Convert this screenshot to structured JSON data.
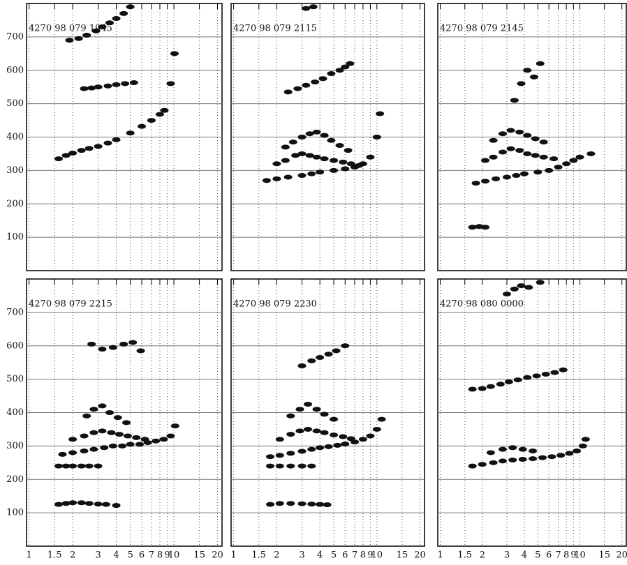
{
  "chart_data": [
    {
      "type": "scatter",
      "title": "4270 98 079 1945",
      "xscale": "log",
      "xlim": [
        0.96,
        21.5
      ],
      "ylim": [
        0,
        800
      ],
      "xticks": [
        1,
        1.5,
        2,
        3,
        4,
        5,
        6,
        7,
        8,
        9,
        10,
        15,
        20
      ],
      "yticks": [
        100,
        200,
        300,
        400,
        500,
        600,
        700
      ],
      "grid": true,
      "series": [
        {
          "color": "#111",
          "x": [
            1.6,
            1.8,
            2,
            2.3,
            2.6,
            3,
            3.5,
            4,
            5,
            6,
            7,
            8,
            8.6,
            9.5,
            10.1
          ],
          "values": [
            335,
            345,
            352,
            360,
            366,
            372,
            382,
            392,
            412,
            432,
            450,
            468,
            480,
            560,
            650
          ]
        },
        {
          "color": "#111",
          "x": [
            2.4,
            2.7,
            3,
            3.5,
            4,
            4.6,
            5.3
          ],
          "values": [
            545,
            547,
            550,
            553,
            557,
            560,
            563
          ]
        },
        {
          "color": "#111",
          "x": [
            1.9,
            2.2,
            2.5,
            2.9,
            3.2,
            3.6,
            4,
            4.5,
            5
          ],
          "values": [
            690,
            695,
            705,
            718,
            730,
            742,
            755,
            770,
            790
          ]
        }
      ]
    },
    {
      "type": "scatter",
      "title": "4270 98 079 2115",
      "xscale": "log",
      "xlim": [
        0.96,
        21.5
      ],
      "ylim": [
        0,
        800
      ],
      "xticks": [
        1,
        1.5,
        2,
        3,
        4,
        5,
        6,
        7,
        8,
        9,
        10,
        15,
        20
      ],
      "yticks": [
        100,
        200,
        300,
        400,
        500,
        600,
        700
      ],
      "grid": true,
      "series": [
        {
          "color": "#111",
          "x": [
            1.7,
            2,
            2.4,
            3,
            3.5,
            4,
            5,
            6,
            7,
            8,
            9,
            10,
            10.5
          ],
          "values": [
            270,
            275,
            280,
            285,
            290,
            295,
            300,
            305,
            310,
            320,
            340,
            400,
            470
          ]
        },
        {
          "color": "#111",
          "x": [
            2,
            2.3,
            2.7,
            3,
            3.4,
            3.8,
            4.3,
            5,
            5.8,
            6.6,
            7.5
          ],
          "values": [
            320,
            330,
            345,
            350,
            345,
            340,
            335,
            330,
            325,
            320,
            315
          ]
        },
        {
          "color": "#111",
          "x": [
            2.3,
            2.6,
            3,
            3.4,
            3.8,
            4.3,
            4.8,
            5.5,
            6.3
          ],
          "values": [
            370,
            385,
            400,
            410,
            415,
            405,
            390,
            375,
            360
          ]
        },
        {
          "color": "#111",
          "x": [
            2.4,
            2.8,
            3.2,
            3.7,
            4.2,
            4.8,
            5.5,
            6,
            6.5
          ],
          "values": [
            535,
            545,
            555,
            565,
            575,
            590,
            600,
            610,
            620
          ]
        },
        {
          "color": "#111",
          "x": [
            3.2,
            3.6
          ],
          "values": [
            785,
            790
          ]
        }
      ]
    },
    {
      "type": "scatter",
      "title": "4270 98 079 2145",
      "xscale": "log",
      "xlim": [
        0.96,
        21.5
      ],
      "ylim": [
        0,
        800
      ],
      "xticks": [
        1,
        1.5,
        2,
        3,
        4,
        5,
        6,
        7,
        8,
        9,
        10,
        15,
        20
      ],
      "yticks": [
        100,
        200,
        300,
        400,
        500,
        600,
        700
      ],
      "grid": true,
      "series": [
        {
          "color": "#111",
          "x": [
            1.8,
            2.1,
            2.5,
            3,
            3.5,
            4,
            5,
            6,
            7,
            8,
            9,
            10,
            12
          ],
          "values": [
            262,
            268,
            275,
            280,
            285,
            290,
            295,
            300,
            310,
            320,
            330,
            340,
            350
          ]
        },
        {
          "color": "#111",
          "x": [
            2.1,
            2.4,
            2.8,
            3.2,
            3.7,
            4.2,
            4.8,
            5.5,
            6.5
          ],
          "values": [
            330,
            340,
            355,
            365,
            360,
            350,
            345,
            340,
            335
          ]
        },
        {
          "color": "#111",
          "x": [
            2.4,
            2.8,
            3.2,
            3.7,
            4.2,
            4.8,
            5.5
          ],
          "values": [
            390,
            410,
            420,
            415,
            405,
            395,
            385
          ]
        },
        {
          "color": "#111",
          "x": [
            3.4,
            3.8,
            4.2,
            4.7,
            5.2
          ],
          "values": [
            510,
            560,
            600,
            580,
            620
          ]
        },
        {
          "color": "#111",
          "x": [
            1.7,
            1.9,
            2.1
          ],
          "values": [
            130,
            132,
            130
          ]
        }
      ]
    },
    {
      "type": "scatter",
      "title": "4270 98 079 2215",
      "xscale": "log",
      "xlim": [
        0.96,
        21.5
      ],
      "ylim": [
        0,
        800
      ],
      "xticks": [
        1,
        1.5,
        2,
        3,
        4,
        5,
        6,
        7,
        8,
        9,
        10,
        15,
        20
      ],
      "yticks": [
        100,
        200,
        300,
        400,
        500,
        600,
        700
      ],
      "grid": true,
      "series": [
        {
          "color": "#111",
          "x": [
            1.6,
            1.8,
            2,
            2.3,
            2.6,
            3
          ],
          "values": [
            240,
            240,
            240,
            240,
            240,
            240
          ]
        },
        {
          "color": "#111",
          "x": [
            1.7,
            2,
            2.4,
            2.8,
            3.3,
            3.8,
            4.4,
            5,
            5.8,
            6.6,
            7.5,
            8.5,
            9.5,
            10.2
          ],
          "values": [
            275,
            280,
            285,
            290,
            295,
            300,
            300,
            305,
            305,
            310,
            315,
            320,
            330,
            360
          ]
        },
        {
          "color": "#111",
          "x": [
            2,
            2.4,
            2.8,
            3.2,
            3.7,
            4.2,
            4.8,
            5.5,
            6.3
          ],
          "values": [
            320,
            330,
            340,
            345,
            340,
            335,
            330,
            325,
            320
          ]
        },
        {
          "color": "#111",
          "x": [
            2.5,
            2.8,
            3.2,
            3.6,
            4.1,
            4.7
          ],
          "values": [
            390,
            410,
            420,
            400,
            385,
            370
          ]
        },
        {
          "color": "#111",
          "x": [
            1.6,
            1.8,
            2,
            2.3,
            2.6,
            3,
            3.4,
            4
          ],
          "values": [
            125,
            128,
            130,
            130,
            128,
            126,
            125,
            122
          ]
        },
        {
          "color": "#111",
          "x": [
            2.7,
            3.2,
            3.8,
            4.5,
            5.2,
            5.9
          ],
          "values": [
            605,
            590,
            595,
            605,
            610,
            585
          ]
        }
      ]
    },
    {
      "type": "scatter",
      "title": "4270 98 079 2230",
      "xscale": "log",
      "xlim": [
        0.96,
        21.5
      ],
      "ylim": [
        0,
        800
      ],
      "xticks": [
        1,
        1.5,
        2,
        3,
        4,
        5,
        6,
        7,
        8,
        9,
        10,
        15,
        20
      ],
      "yticks": [
        100,
        200,
        300,
        400,
        500,
        600,
        700
      ],
      "grid": true,
      "series": [
        {
          "color": "#111",
          "x": [
            1.8,
            2.1,
            2.5,
            3,
            3.5
          ],
          "values": [
            240,
            240,
            240,
            240,
            240
          ]
        },
        {
          "color": "#111",
          "x": [
            1.8,
            2.1,
            2.5,
            3,
            3.5,
            4,
            4.6,
            5.3,
            6,
            7,
            8,
            9,
            10,
            10.8
          ],
          "values": [
            268,
            272,
            278,
            284,
            290,
            295,
            298,
            302,
            306,
            312,
            320,
            330,
            350,
            380
          ]
        },
        {
          "color": "#111",
          "x": [
            2.1,
            2.5,
            2.9,
            3.3,
            3.8,
            4.3,
            5,
            5.8,
            6.6
          ],
          "values": [
            320,
            335,
            345,
            350,
            345,
            340,
            333,
            328,
            322
          ]
        },
        {
          "color": "#111",
          "x": [
            2.5,
            2.9,
            3.3,
            3.8,
            4.3,
            5
          ],
          "values": [
            390,
            410,
            425,
            410,
            395,
            380
          ]
        },
        {
          "color": "#111",
          "x": [
            1.8,
            2.1,
            2.5,
            3,
            3.5,
            4,
            4.5
          ],
          "values": [
            125,
            128,
            128,
            127,
            126,
            125,
            124
          ]
        },
        {
          "color": "#111",
          "x": [
            3,
            3.5,
            4,
            4.6,
            5.2,
            6
          ],
          "values": [
            540,
            555,
            565,
            575,
            585,
            600
          ]
        }
      ]
    },
    {
      "type": "scatter",
      "title": "4270 98 080 0000",
      "xscale": "log",
      "xlim": [
        0.96,
        21.5
      ],
      "ylim": [
        0,
        800
      ],
      "xticks": [
        1,
        1.5,
        2,
        3,
        4,
        5,
        6,
        7,
        8,
        9,
        10,
        15,
        20
      ],
      "yticks": [
        100,
        200,
        300,
        400,
        500,
        600,
        700
      ],
      "grid": true,
      "series": [
        {
          "color": "#111",
          "x": [
            1.7,
            2,
            2.3,
            2.7,
            3.1,
            3.6,
            4.2,
            4.9,
            5.7,
            6.6,
            7.6
          ],
          "values": [
            470,
            472,
            478,
            485,
            492,
            498,
            505,
            510,
            515,
            520,
            528
          ]
        },
        {
          "color": "#111",
          "x": [
            1.7,
            2,
            2.4,
            2.8,
            3.3,
            3.9,
            4.6,
            5.4,
            6.3,
            7.3,
            8.4,
            9.5,
            10.5,
            11
          ],
          "values": [
            240,
            245,
            250,
            255,
            258,
            260,
            262,
            265,
            268,
            272,
            278,
            285,
            300,
            320
          ]
        },
        {
          "color": "#111",
          "x": [
            2.3,
            2.8,
            3.3,
            3.9,
            4.6
          ],
          "values": [
            280,
            290,
            295,
            290,
            285
          ]
        },
        {
          "color": "#111",
          "x": [
            3,
            3.4,
            3.8,
            4.3,
            5.2
          ],
          "values": [
            755,
            770,
            780,
            775,
            790
          ]
        }
      ]
    }
  ]
}
